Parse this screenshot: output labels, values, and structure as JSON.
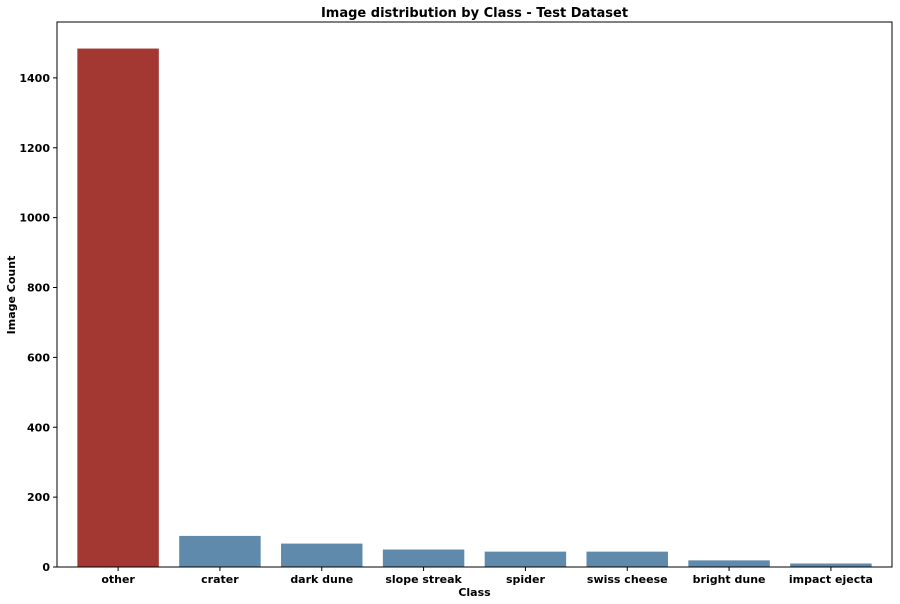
{
  "chart_data": {
    "type": "bar",
    "title": "Image distribution by Class - Test Dataset",
    "xlabel": "Class",
    "ylabel": "Image Count",
    "categories": [
      "other",
      "crater",
      "dark dune",
      "slope streak",
      "spider",
      "swiss cheese",
      "bright dune",
      "impact ejecta"
    ],
    "values": [
      1484,
      89,
      67,
      50,
      44,
      44,
      19,
      10
    ],
    "colors": [
      "#a33833",
      "#5f8aab",
      "#5f8aab",
      "#5f8aab",
      "#5f8aab",
      "#5f8aab",
      "#5f8aab",
      "#5f8aab"
    ],
    "ylim": [
      0,
      1560
    ],
    "yticks": [
      0,
      200,
      400,
      600,
      800,
      1000,
      1200,
      1400
    ],
    "grid": false,
    "legend": "none"
  }
}
